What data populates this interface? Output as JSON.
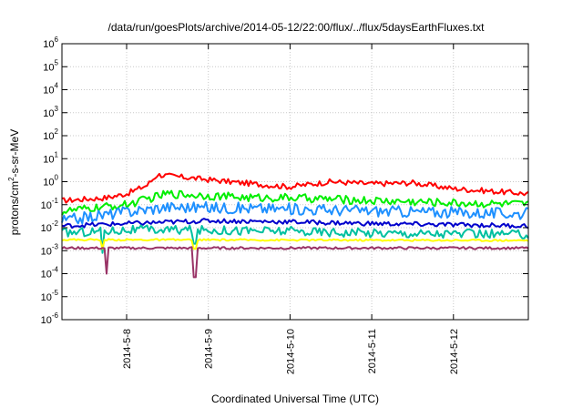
{
  "chart_data": {
    "type": "line",
    "title": "/data/run/goesPlots/archive/2014-05-12/22:00/flux/../flux/5daysEarthFluxes.txt",
    "xlabel": "Coordinated Universal Time (UTC)",
    "ylabel_parts": [
      "protons/cm",
      "2",
      "-s-sr-MeV"
    ],
    "y_scale": "log",
    "ylim": [
      1e-06,
      1000000.0
    ],
    "y_ticks": [
      {
        "base": "10",
        "exp": "-6",
        "value": 1e-06
      },
      {
        "base": "10",
        "exp": "-5",
        "value": 1e-05
      },
      {
        "base": "10",
        "exp": "-4",
        "value": 0.0001
      },
      {
        "base": "10",
        "exp": "-3",
        "value": 0.001
      },
      {
        "base": "10",
        "exp": "-2",
        "value": 0.01
      },
      {
        "base": "10",
        "exp": "-1",
        "value": 0.1
      },
      {
        "base": "10",
        "exp": "0",
        "value": 1
      },
      {
        "base": "10",
        "exp": "1",
        "value": 10
      },
      {
        "base": "10",
        "exp": "2",
        "value": 100
      },
      {
        "base": "10",
        "exp": "3",
        "value": 1000
      },
      {
        "base": "10",
        "exp": "4",
        "value": 10000
      },
      {
        "base": "10",
        "exp": "5",
        "value": 100000
      },
      {
        "base": "10",
        "exp": "6",
        "value": 1000000
      }
    ],
    "x_start": "2014-05-07T05:00",
    "x_end": "2014-05-12T22:00",
    "x_ticks": [
      {
        "label": "2014-5-8",
        "value": "2014-05-08T00:00"
      },
      {
        "label": "2014-5-9",
        "value": "2014-05-09T00:00"
      },
      {
        "label": "2014-5-10",
        "value": "2014-05-10T00:00"
      },
      {
        "label": "2014-5-11",
        "value": "2014-05-11T00:00"
      },
      {
        "label": "2014-5-12",
        "value": "2014-05-12T00:00"
      }
    ],
    "grid": true,
    "legend": "none",
    "series": [
      {
        "color": "#ff0000",
        "anchors": [
          [
            "2014-05-07T05:00",
            0.15
          ],
          [
            "2014-05-07T18:00",
            0.2
          ],
          [
            "2014-05-08T00:00",
            0.3
          ],
          [
            "2014-05-08T06:00",
            0.7
          ],
          [
            "2014-05-08T09:00",
            2.0
          ],
          [
            "2014-05-08T18:00",
            1.5
          ],
          [
            "2014-05-09T06:00",
            1.0
          ],
          [
            "2014-05-09T18:00",
            0.7
          ],
          [
            "2014-05-10T00:00",
            0.6
          ],
          [
            "2014-05-10T12:00",
            1.0
          ],
          [
            "2014-05-11T00:00",
            0.8
          ],
          [
            "2014-05-11T12:00",
            0.9
          ],
          [
            "2014-05-12T00:00",
            0.5
          ],
          [
            "2014-05-12T22:00",
            0.3
          ]
        ],
        "noise": 0.12
      },
      {
        "color": "#00ee00",
        "anchors": [
          [
            "2014-05-07T05:00",
            0.05
          ],
          [
            "2014-05-08T00:00",
            0.1
          ],
          [
            "2014-05-08T12:00",
            0.3
          ],
          [
            "2014-05-09T00:00",
            0.25
          ],
          [
            "2014-05-09T12:00",
            0.2
          ],
          [
            "2014-05-10T00:00",
            0.2
          ],
          [
            "2014-05-11T00:00",
            0.15
          ],
          [
            "2014-05-12T00:00",
            0.12
          ],
          [
            "2014-05-12T22:00",
            0.1
          ]
        ],
        "noise": 0.18
      },
      {
        "color": "#1e90ff",
        "anchors": [
          [
            "2014-05-07T05:00",
            0.02
          ],
          [
            "2014-05-08T00:00",
            0.05
          ],
          [
            "2014-05-08T12:00",
            0.08
          ],
          [
            "2014-05-09T12:00",
            0.07
          ],
          [
            "2014-05-10T12:00",
            0.06
          ],
          [
            "2014-05-11T12:00",
            0.05
          ],
          [
            "2014-05-12T22:00",
            0.04
          ]
        ],
        "noise": 0.25
      },
      {
        "color": "#0000cc",
        "anchors": [
          [
            "2014-05-07T05:00",
            0.012
          ],
          [
            "2014-05-08T00:00",
            0.015
          ],
          [
            "2014-05-09T00:00",
            0.02
          ],
          [
            "2014-05-10T00:00",
            0.018
          ],
          [
            "2014-05-11T00:00",
            0.015
          ],
          [
            "2014-05-12T22:00",
            0.012
          ]
        ],
        "noise": 0.1
      },
      {
        "color": "#00c0a0",
        "anchors": [
          [
            "2014-05-07T05:00",
            0.006
          ],
          [
            "2014-05-08T00:00",
            0.008
          ],
          [
            "2014-05-09T00:00",
            0.008
          ],
          [
            "2014-05-10T00:00",
            0.007
          ],
          [
            "2014-05-11T00:00",
            0.006
          ],
          [
            "2014-05-12T22:00",
            0.005
          ]
        ],
        "noise": 0.2,
        "dips": [
          [
            "2014-05-07T17:00",
            0.0008
          ],
          [
            "2014-05-08T20:00",
            0.002
          ]
        ]
      },
      {
        "color": "#ffff00",
        "anchors": [
          [
            "2014-05-07T05:00",
            0.003
          ],
          [
            "2014-05-12T22:00",
            0.0028
          ]
        ],
        "noise": 0.04,
        "dips": [
          [
            "2014-05-07T17:00",
            0.0012
          ],
          [
            "2014-05-08T20:00",
            0.0012
          ]
        ]
      },
      {
        "color": "#993366",
        "anchors": [
          [
            "2014-05-07T05:00",
            0.0013
          ],
          [
            "2014-05-12T22:00",
            0.0013
          ]
        ],
        "noise": 0.05,
        "dips": [
          [
            "2014-05-07T18:00",
            0.0001
          ],
          [
            "2014-05-08T20:00",
            7e-05
          ]
        ]
      }
    ]
  }
}
